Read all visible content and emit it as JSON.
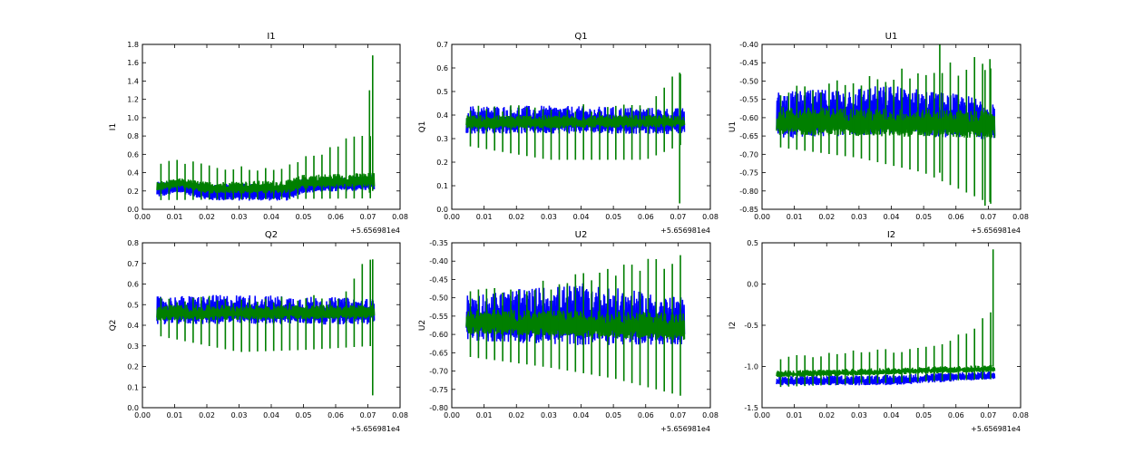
{
  "chart_data": [
    {
      "type": "line",
      "title": "I1",
      "ylabel": "I1",
      "xlim": [
        0,
        0.08
      ],
      "ylim": [
        0,
        1.8
      ],
      "x_ticks": [
        "0.00",
        "0.01",
        "0.02",
        "0.03",
        "0.04",
        "0.05",
        "0.06",
        "0.07",
        "0.08"
      ],
      "y_ticks": [
        "0.0",
        "0.2",
        "0.4",
        "0.6",
        "0.8",
        "1.0",
        "1.2",
        "1.4",
        "1.6",
        "1.8"
      ],
      "x_offset": "+5.656981e4",
      "x_range": [
        0.0045,
        0.072
      ],
      "series": [
        {
          "color": "#0000ff",
          "band": [
            [
              0.0045,
              0.1,
              0.3
            ],
            [
              0.012,
              0.15,
              0.32
            ],
            [
              0.02,
              0.06,
              0.28
            ],
            [
              0.03,
              0.06,
              0.28
            ],
            [
              0.045,
              0.06,
              0.28
            ],
            [
              0.05,
              0.15,
              0.34
            ],
            [
              0.06,
              0.16,
              0.35
            ],
            [
              0.072,
              0.18,
              0.38
            ]
          ]
        },
        {
          "color": "#007f00",
          "band": [
            [
              0.0045,
              0.18,
              0.3
            ],
            [
              0.012,
              0.22,
              0.34
            ],
            [
              0.02,
              0.15,
              0.3
            ],
            [
              0.045,
              0.15,
              0.32
            ],
            [
              0.05,
              0.2,
              0.38
            ],
            [
              0.072,
              0.22,
              0.4
            ]
          ],
          "spike_period": 0.0025,
          "spike_mins": [
            [
              0.0045,
              0.1
            ],
            [
              0.072,
              0.12
            ]
          ],
          "spike_maxs": [
            [
              0.0045,
              0.52
            ],
            [
              0.012,
              0.55
            ],
            [
              0.02,
              0.5
            ],
            [
              0.03,
              0.47
            ],
            [
              0.045,
              0.48
            ],
            [
              0.05,
              0.58
            ],
            [
              0.06,
              0.75
            ],
            [
              0.066,
              0.8
            ],
            [
              0.07,
              0.85
            ]
          ],
          "extra_spikes": [
            [
              0.0705,
              0.18,
              1.3
            ],
            [
              0.0715,
              0.2,
              1.68
            ]
          ]
        }
      ]
    },
    {
      "type": "line",
      "title": "Q1",
      "ylabel": "Q1",
      "xlim": [
        0,
        0.08
      ],
      "ylim": [
        0,
        0.7
      ],
      "x_ticks": [
        "0.00",
        "0.01",
        "0.02",
        "0.03",
        "0.04",
        "0.05",
        "0.06",
        "0.07",
        "0.08"
      ],
      "y_ticks": [
        "0.0",
        "0.1",
        "0.2",
        "0.3",
        "0.4",
        "0.5",
        "0.6",
        "0.7"
      ],
      "x_offset": "+5.656981e4",
      "x_range": [
        0.0045,
        0.072
      ],
      "series": [
        {
          "color": "#0000ff",
          "band": [
            [
              0.0045,
              0.3,
              0.44
            ],
            [
              0.03,
              0.3,
              0.44
            ],
            [
              0.072,
              0.3,
              0.43
            ]
          ]
        },
        {
          "color": "#007f00",
          "band": [
            [
              0.0045,
              0.33,
              0.4
            ],
            [
              0.072,
              0.34,
              0.4
            ]
          ],
          "spike_period": 0.0025,
          "spike_mins": [
            [
              0.0045,
              0.27
            ],
            [
              0.03,
              0.21
            ],
            [
              0.06,
              0.21
            ],
            [
              0.072,
              0.28
            ]
          ],
          "spike_maxs": [
            [
              0.0045,
              0.44
            ],
            [
              0.06,
              0.45
            ],
            [
              0.066,
              0.55
            ],
            [
              0.072,
              0.6
            ]
          ],
          "extra_spikes": [
            [
              0.0705,
              0.025,
              0.58
            ]
          ]
        }
      ]
    },
    {
      "type": "line",
      "title": "U1",
      "ylabel": "U1",
      "xlim": [
        0,
        0.08
      ],
      "ylim": [
        -0.85,
        -0.4
      ],
      "x_ticks": [
        "0.00",
        "0.01",
        "0.02",
        "0.03",
        "0.04",
        "0.05",
        "0.06",
        "0.07",
        "0.08"
      ],
      "y_ticks": [
        "-0.85",
        "-0.80",
        "-0.75",
        "-0.70",
        "-0.65",
        "-0.60",
        "-0.55",
        "-0.50",
        "-0.45",
        "-0.40"
      ],
      "x_offset": "+5.656981e4",
      "x_range": [
        0.0045,
        0.072
      ],
      "series": [
        {
          "color": "#0000ff",
          "band": [
            [
              0.0045,
              -0.68,
              -0.53
            ],
            [
              0.04,
              -0.67,
              -0.51
            ],
            [
              0.072,
              -0.68,
              -0.55
            ]
          ]
        },
        {
          "color": "#007f00",
          "band": [
            [
              0.0045,
              -0.66,
              -0.57
            ],
            [
              0.072,
              -0.67,
              -0.58
            ]
          ],
          "spike_period": 0.0025,
          "spike_mins": [
            [
              0.0045,
              -0.68
            ],
            [
              0.03,
              -0.71
            ],
            [
              0.05,
              -0.75
            ],
            [
              0.072,
              -0.84
            ]
          ],
          "spike_maxs": [
            [
              0.0045,
              -0.52
            ],
            [
              0.03,
              -0.49
            ],
            [
              0.045,
              -0.45
            ],
            [
              0.072,
              -0.42
            ]
          ],
          "extra_spikes": [
            [
              0.055,
              -0.75,
              -0.4
            ],
            [
              0.069,
              -0.84,
              -0.47
            ],
            [
              0.0705,
              -0.83,
              -0.44
            ]
          ]
        }
      ]
    },
    {
      "type": "line",
      "title": "Q2",
      "ylabel": "Q2",
      "xlim": [
        0,
        0.08
      ],
      "ylim": [
        0,
        0.8
      ],
      "x_ticks": [
        "0.00",
        "0.01",
        "0.02",
        "0.03",
        "0.04",
        "0.05",
        "0.06",
        "0.07",
        "0.08"
      ],
      "y_ticks": [
        "0.0",
        "0.1",
        "0.2",
        "0.3",
        "0.4",
        "0.5",
        "0.6",
        "0.7",
        "0.8"
      ],
      "x_offset": "+5.656981e4",
      "x_range": [
        0.0045,
        0.072
      ],
      "series": [
        {
          "color": "#0000ff",
          "band": [
            [
              0.0045,
              0.38,
              0.54
            ],
            [
              0.03,
              0.38,
              0.55
            ],
            [
              0.072,
              0.38,
              0.53
            ]
          ]
        },
        {
          "color": "#007f00",
          "band": [
            [
              0.0045,
              0.41,
              0.5
            ],
            [
              0.072,
              0.42,
              0.5
            ]
          ],
          "spike_period": 0.0025,
          "spike_mins": [
            [
              0.0045,
              0.35
            ],
            [
              0.03,
              0.27
            ],
            [
              0.05,
              0.28
            ],
            [
              0.072,
              0.3
            ]
          ],
          "spike_maxs": [
            [
              0.0045,
              0.54
            ],
            [
              0.06,
              0.55
            ],
            [
              0.066,
              0.66
            ],
            [
              0.07,
              0.74
            ]
          ],
          "extra_spikes": [
            [
              0.0715,
              0.06,
              0.72
            ]
          ]
        }
      ]
    },
    {
      "type": "line",
      "title": "U2",
      "ylabel": "U2",
      "xlim": [
        0,
        0.08
      ],
      "ylim": [
        -0.8,
        -0.35
      ],
      "x_ticks": [
        "0.00",
        "0.01",
        "0.02",
        "0.03",
        "0.04",
        "0.05",
        "0.06",
        "0.07",
        "0.08"
      ],
      "y_ticks": [
        "-0.80",
        "-0.75",
        "-0.70",
        "-0.65",
        "-0.60",
        "-0.55",
        "-0.50",
        "-0.45",
        "-0.40",
        "-0.35"
      ],
      "x_offset": "+5.656981e4",
      "x_range": [
        0.0045,
        0.072
      ],
      "series": [
        {
          "color": "#0000ff",
          "band": [
            [
              0.0045,
              -0.64,
              -0.49
            ],
            [
              0.04,
              -0.66,
              -0.46
            ],
            [
              0.072,
              -0.65,
              -0.5
            ]
          ]
        },
        {
          "color": "#007f00",
          "band": [
            [
              0.0045,
              -0.61,
              -0.53
            ],
            [
              0.072,
              -0.63,
              -0.54
            ]
          ],
          "spike_period": 0.0025,
          "spike_mins": [
            [
              0.0045,
              -0.66
            ],
            [
              0.03,
              -0.69
            ],
            [
              0.05,
              -0.72
            ],
            [
              0.072,
              -0.77
            ]
          ],
          "spike_maxs": [
            [
              0.0045,
              -0.48
            ],
            [
              0.03,
              -0.45
            ],
            [
              0.05,
              -0.41
            ],
            [
              0.072,
              -0.37
            ]
          ]
        }
      ]
    },
    {
      "type": "line",
      "title": "I2",
      "ylabel": "I2",
      "xlim": [
        0,
        0.08
      ],
      "ylim": [
        -1.5,
        0.5
      ],
      "x_ticks": [
        "0.00",
        "0.01",
        "0.02",
        "0.03",
        "0.04",
        "0.05",
        "0.06",
        "0.07",
        "0.08"
      ],
      "y_ticks": [
        "-1.5",
        "-1.0",
        "-0.5",
        "0.0",
        "0.5"
      ],
      "x_offset": "+5.656981e4",
      "x_range": [
        0.0045,
        0.072
      ],
      "series": [
        {
          "color": "#0000ff",
          "band": [
            [
              0.0045,
              -1.25,
              -1.12
            ],
            [
              0.04,
              -1.25,
              -1.1
            ],
            [
              0.072,
              -1.17,
              -1.05
            ]
          ]
        },
        {
          "color": "#007f00",
          "band": [
            [
              0.0045,
              -1.15,
              -1.05
            ],
            [
              0.072,
              -1.08,
              -0.98
            ]
          ],
          "spike_period": 0.0025,
          "spike_mins": [
            [
              0.0045,
              -1.25
            ],
            [
              0.072,
              -1.15
            ]
          ],
          "spike_maxs": [
            [
              0.0045,
              -0.88
            ],
            [
              0.03,
              -0.78
            ],
            [
              0.045,
              -0.78
            ],
            [
              0.06,
              -0.62
            ],
            [
              0.066,
              -0.45
            ],
            [
              0.07,
              -0.3
            ]
          ],
          "extra_spikes": [
            [
              0.0715,
              -1.0,
              0.42
            ]
          ]
        }
      ]
    }
  ]
}
